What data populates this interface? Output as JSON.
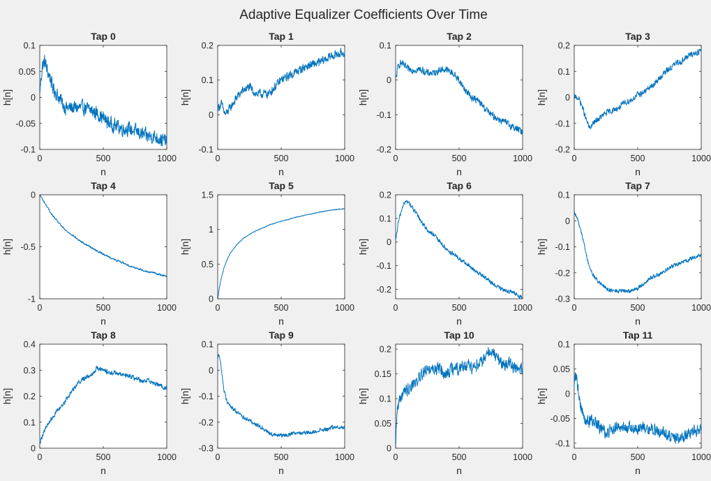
{
  "figure_title": "Adaptive Equalizer Coefficients Over Time",
  "colors": {
    "background": "#f0f0f0",
    "axes_bg": "#ffffff",
    "line": "#0072bd",
    "text": "#262626"
  },
  "chart_data": [
    {
      "type": "line",
      "title": "Tap 0",
      "xlabel": "n",
      "ylabel": "h[n]",
      "xlim": [
        0,
        1000
      ],
      "ylim": [
        -0.1,
        0.1
      ],
      "x_ticks": [
        0,
        500,
        1000
      ],
      "x_tick_labels": [
        "0",
        "500",
        "1000"
      ],
      "y_ticks": [
        -0.1,
        -0.05,
        0,
        0.05,
        0.1
      ],
      "y_tick_labels": [
        "-0.1",
        "-0.05",
        "0",
        "0.05",
        "0.1"
      ],
      "x": [
        0,
        20,
        40,
        60,
        80,
        100,
        150,
        200,
        250,
        300,
        350,
        400,
        450,
        500,
        550,
        600,
        650,
        700,
        750,
        800,
        850,
        900,
        950,
        1000
      ],
      "y": [
        0.01,
        0.06,
        0.07,
        0.05,
        0.04,
        0.02,
        0.0,
        -0.02,
        -0.02,
        -0.02,
        -0.02,
        -0.025,
        -0.03,
        -0.04,
        -0.05,
        -0.055,
        -0.06,
        -0.06,
        -0.065,
        -0.07,
        -0.075,
        -0.075,
        -0.08,
        -0.085
      ],
      "noise": 0.012,
      "grid": false,
      "legend": false
    },
    {
      "type": "line",
      "title": "Tap 1",
      "xlabel": "n",
      "ylabel": "h[n]",
      "xlim": [
        0,
        1000
      ],
      "ylim": [
        -0.1,
        0.2
      ],
      "x_ticks": [
        0,
        500,
        1000
      ],
      "x_tick_labels": [
        "0",
        "500",
        "1000"
      ],
      "y_ticks": [
        -0.1,
        0,
        0.1,
        0.2
      ],
      "y_tick_labels": [
        "-0.1",
        "0",
        "0.1",
        "0.2"
      ],
      "x": [
        0,
        30,
        60,
        100,
        150,
        200,
        250,
        300,
        350,
        400,
        450,
        500,
        550,
        600,
        700,
        800,
        900,
        1000
      ],
      "y": [
        0.02,
        0.03,
        0.0,
        0.02,
        0.05,
        0.07,
        0.08,
        0.06,
        0.06,
        0.06,
        0.08,
        0.1,
        0.11,
        0.12,
        0.14,
        0.15,
        0.17,
        0.18
      ],
      "noise": 0.011,
      "grid": false,
      "legend": false
    },
    {
      "type": "line",
      "title": "Tap 2",
      "xlabel": "n",
      "ylabel": "h[n]",
      "xlim": [
        0,
        1000
      ],
      "ylim": [
        -0.2,
        0.1
      ],
      "x_ticks": [
        0,
        500,
        1000
      ],
      "x_tick_labels": [
        "0",
        "500",
        "1000"
      ],
      "y_ticks": [
        -0.2,
        -0.1,
        0,
        0.1
      ],
      "y_tick_labels": [
        "-0.2",
        "-0.1",
        "0",
        "0.1"
      ],
      "x": [
        0,
        20,
        40,
        100,
        150,
        200,
        250,
        300,
        350,
        400,
        450,
        500,
        550,
        600,
        650,
        700,
        750,
        800,
        850,
        900,
        950,
        1000
      ],
      "y": [
        0.0,
        0.04,
        0.05,
        0.03,
        0.03,
        0.03,
        0.02,
        0.02,
        0.03,
        0.03,
        0.02,
        0.0,
        -0.03,
        -0.05,
        -0.06,
        -0.08,
        -0.1,
        -0.11,
        -0.12,
        -0.13,
        -0.14,
        -0.15
      ],
      "noise": 0.009,
      "grid": false,
      "legend": false
    },
    {
      "type": "line",
      "title": "Tap 3",
      "xlabel": "n",
      "ylabel": "h[n]",
      "xlim": [
        0,
        1000
      ],
      "ylim": [
        -0.2,
        0.2
      ],
      "x_ticks": [
        0,
        500,
        1000
      ],
      "x_tick_labels": [
        "0",
        "500",
        "1000"
      ],
      "y_ticks": [
        -0.2,
        -0.1,
        0,
        0.1,
        0.2
      ],
      "y_tick_labels": [
        "-0.2",
        "-0.1",
        "0",
        "0.1",
        "0.2"
      ],
      "x": [
        0,
        30,
        60,
        90,
        120,
        150,
        200,
        250,
        300,
        350,
        400,
        450,
        500,
        550,
        600,
        650,
        700,
        750,
        800,
        850,
        900,
        950,
        1000
      ],
      "y": [
        0.0,
        0.0,
        -0.03,
        -0.08,
        -0.12,
        -0.1,
        -0.08,
        -0.06,
        -0.05,
        -0.04,
        -0.02,
        -0.01,
        0.01,
        0.02,
        0.04,
        0.06,
        0.09,
        0.11,
        0.13,
        0.14,
        0.16,
        0.17,
        0.18
      ],
      "noise": 0.01,
      "grid": false,
      "legend": false
    },
    {
      "type": "line",
      "title": "Tap 4",
      "xlabel": "n",
      "ylabel": "h[n]",
      "xlim": [
        0,
        1000
      ],
      "ylim": [
        -1,
        0
      ],
      "x_ticks": [
        0,
        500,
        1000
      ],
      "x_tick_labels": [
        "0",
        "500",
        "1000"
      ],
      "y_ticks": [
        -1,
        -0.5,
        0
      ],
      "y_tick_labels": [
        "-1",
        "-0.5",
        "0"
      ],
      "x": [
        0,
        25,
        50,
        100,
        150,
        200,
        250,
        300,
        350,
        400,
        450,
        500,
        550,
        600,
        650,
        700,
        750,
        800,
        850,
        900,
        950,
        1000
      ],
      "y": [
        0.0,
        -0.05,
        -0.1,
        -0.2,
        -0.27,
        -0.34,
        -0.38,
        -0.43,
        -0.47,
        -0.5,
        -0.54,
        -0.57,
        -0.6,
        -0.63,
        -0.65,
        -0.68,
        -0.7,
        -0.72,
        -0.74,
        -0.75,
        -0.77,
        -0.78
      ],
      "noise": 0.008,
      "grid": false,
      "legend": false
    },
    {
      "type": "line",
      "title": "Tap 5",
      "xlabel": "n",
      "ylabel": "h[n]",
      "xlim": [
        0,
        1000
      ],
      "ylim": [
        0,
        1.5
      ],
      "x_ticks": [
        0,
        500,
        1000
      ],
      "x_tick_labels": [
        "0",
        "500",
        "1000"
      ],
      "y_ticks": [
        0,
        0.5,
        1,
        1.5
      ],
      "y_tick_labels": [
        "0",
        "0.5",
        "1",
        "1.5"
      ],
      "x": [
        0,
        10,
        25,
        50,
        75,
        100,
        150,
        200,
        250,
        300,
        350,
        400,
        450,
        500,
        550,
        600,
        700,
        800,
        900,
        1000
      ],
      "y": [
        0.0,
        0.12,
        0.27,
        0.45,
        0.57,
        0.66,
        0.78,
        0.87,
        0.93,
        0.98,
        1.02,
        1.06,
        1.09,
        1.12,
        1.14,
        1.17,
        1.21,
        1.25,
        1.28,
        1.3
      ],
      "noise": 0.005,
      "grid": false,
      "legend": false
    },
    {
      "type": "line",
      "title": "Tap 6",
      "xlabel": "n",
      "ylabel": "h[n]",
      "xlim": [
        0,
        1000
      ],
      "ylim": [
        -0.24,
        0.2
      ],
      "x_ticks": [
        0,
        500,
        1000
      ],
      "x_tick_labels": [
        "0",
        "500",
        "1000"
      ],
      "y_ticks": [
        -0.2,
        -0.1,
        0,
        0.1,
        0.2
      ],
      "y_tick_labels": [
        "-0.2",
        "-0.1",
        "0",
        "0.1",
        "0.2"
      ],
      "x": [
        0,
        20,
        40,
        60,
        80,
        100,
        150,
        200,
        250,
        300,
        350,
        400,
        450,
        500,
        550,
        600,
        650,
        700,
        750,
        800,
        850,
        900,
        950,
        1000
      ],
      "y": [
        0.0,
        0.08,
        0.12,
        0.16,
        0.17,
        0.17,
        0.13,
        0.09,
        0.05,
        0.03,
        0.0,
        -0.03,
        -0.05,
        -0.07,
        -0.09,
        -0.11,
        -0.13,
        -0.15,
        -0.17,
        -0.19,
        -0.2,
        -0.21,
        -0.22,
        -0.24
      ],
      "noise": 0.008,
      "grid": false,
      "legend": false
    },
    {
      "type": "line",
      "title": "Tap 7",
      "xlabel": "n",
      "ylabel": "h[n]",
      "xlim": [
        0,
        1000
      ],
      "ylim": [
        -0.3,
        0.1
      ],
      "x_ticks": [
        0,
        500,
        1000
      ],
      "x_tick_labels": [
        "0",
        "500",
        "1000"
      ],
      "y_ticks": [
        -0.3,
        -0.2,
        -0.1,
        0,
        0.1
      ],
      "y_tick_labels": [
        "-0.3",
        "-0.2",
        "-0.1",
        "0",
        "0.1"
      ],
      "x": [
        0,
        30,
        60,
        90,
        120,
        150,
        200,
        250,
        300,
        350,
        400,
        450,
        500,
        550,
        600,
        650,
        700,
        750,
        800,
        850,
        900,
        950,
        1000
      ],
      "y": [
        0.03,
        0.0,
        -0.05,
        -0.12,
        -0.18,
        -0.21,
        -0.24,
        -0.26,
        -0.27,
        -0.27,
        -0.27,
        -0.27,
        -0.26,
        -0.24,
        -0.22,
        -0.21,
        -0.2,
        -0.18,
        -0.17,
        -0.16,
        -0.15,
        -0.14,
        -0.13
      ],
      "noise": 0.007,
      "grid": false,
      "legend": false
    },
    {
      "type": "line",
      "title": "Tap 8",
      "xlabel": "n",
      "ylabel": "h[n]",
      "xlim": [
        0,
        1000
      ],
      "ylim": [
        0,
        0.4
      ],
      "x_ticks": [
        0,
        500,
        1000
      ],
      "x_tick_labels": [
        "0",
        "500",
        "1000"
      ],
      "y_ticks": [
        0,
        0.1,
        0.2,
        0.3,
        0.4
      ],
      "y_tick_labels": [
        "0",
        "0.1",
        "0.2",
        "0.3",
        "0.4"
      ],
      "x": [
        0,
        20,
        50,
        100,
        150,
        200,
        250,
        300,
        350,
        400,
        450,
        500,
        550,
        600,
        650,
        700,
        750,
        800,
        850,
        900,
        950,
        1000
      ],
      "y": [
        0.02,
        0.05,
        0.08,
        0.12,
        0.15,
        0.18,
        0.22,
        0.25,
        0.27,
        0.28,
        0.31,
        0.3,
        0.29,
        0.29,
        0.28,
        0.28,
        0.27,
        0.26,
        0.26,
        0.25,
        0.24,
        0.23
      ],
      "noise": 0.008,
      "grid": false,
      "legend": false
    },
    {
      "type": "line",
      "title": "Tap 9",
      "xlabel": "n",
      "ylabel": "h[n]",
      "xlim": [
        0,
        1000
      ],
      "ylim": [
        -0.3,
        0.1
      ],
      "x_ticks": [
        0,
        500,
        1000
      ],
      "x_tick_labels": [
        "0",
        "500",
        "1000"
      ],
      "y_ticks": [
        -0.3,
        -0.2,
        -0.1,
        0,
        0.1
      ],
      "y_tick_labels": [
        "-0.3",
        "-0.2",
        "-0.1",
        "0",
        "0.1"
      ],
      "x": [
        0,
        10,
        25,
        50,
        75,
        100,
        150,
        200,
        250,
        300,
        350,
        400,
        450,
        500,
        550,
        600,
        650,
        700,
        750,
        800,
        850,
        900,
        950,
        1000
      ],
      "y": [
        0.05,
        0.06,
        0.02,
        -0.08,
        -0.12,
        -0.14,
        -0.16,
        -0.18,
        -0.19,
        -0.21,
        -0.22,
        -0.24,
        -0.25,
        -0.25,
        -0.25,
        -0.24,
        -0.24,
        -0.24,
        -0.24,
        -0.23,
        -0.23,
        -0.22,
        -0.22,
        -0.22
      ],
      "noise": 0.007,
      "grid": false,
      "legend": false
    },
    {
      "type": "line",
      "title": "Tap 10",
      "xlabel": "n",
      "ylabel": "h[n]",
      "xlim": [
        0,
        1000
      ],
      "ylim": [
        0,
        0.21
      ],
      "x_ticks": [
        0,
        500,
        1000
      ],
      "x_tick_labels": [
        "0",
        "500",
        "1000"
      ],
      "y_ticks": [
        0,
        0.05,
        0.1,
        0.15,
        0.2
      ],
      "y_tick_labels": [
        "0",
        "0.05",
        "0.1",
        "0.15",
        "0.2"
      ],
      "x": [
        0,
        10,
        30,
        60,
        100,
        150,
        200,
        250,
        300,
        350,
        400,
        450,
        500,
        550,
        600,
        650,
        700,
        750,
        800,
        850,
        900,
        950,
        1000
      ],
      "y": [
        0.01,
        0.07,
        0.1,
        0.11,
        0.12,
        0.13,
        0.15,
        0.16,
        0.16,
        0.16,
        0.15,
        0.16,
        0.16,
        0.17,
        0.16,
        0.17,
        0.18,
        0.2,
        0.18,
        0.17,
        0.17,
        0.16,
        0.16
      ],
      "noise": 0.011,
      "grid": false,
      "legend": false
    },
    {
      "type": "line",
      "title": "Tap 11",
      "xlabel": "n",
      "ylabel": "h[n]",
      "xlim": [
        0,
        1000
      ],
      "ylim": [
        -0.11,
        0.1
      ],
      "x_ticks": [
        0,
        500,
        1000
      ],
      "x_tick_labels": [
        "0",
        "500",
        "1000"
      ],
      "y_ticks": [
        -0.1,
        -0.05,
        0,
        0.05,
        0.1
      ],
      "y_tick_labels": [
        "-0.1",
        "-0.05",
        "0",
        "0.05",
        "0.1"
      ],
      "x": [
        0,
        15,
        30,
        60,
        100,
        150,
        200,
        250,
        300,
        400,
        500,
        600,
        700,
        800,
        900,
        1000
      ],
      "y": [
        0.02,
        0.04,
        0.01,
        -0.04,
        -0.06,
        -0.05,
        -0.07,
        -0.08,
        -0.07,
        -0.07,
        -0.07,
        -0.07,
        -0.08,
        -0.09,
        -0.08,
        -0.07
      ],
      "noise": 0.011,
      "grid": false,
      "legend": false
    }
  ]
}
